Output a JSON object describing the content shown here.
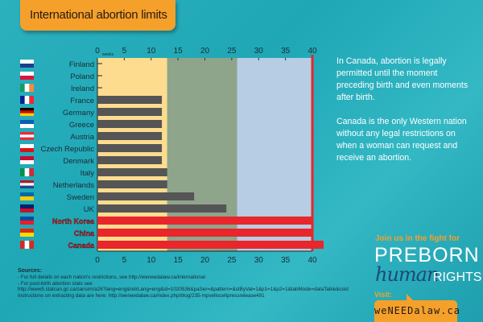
{
  "title": "International abortion limits",
  "chart_data": {
    "type": "bar",
    "orientation": "horizontal",
    "title": "International abortion limits",
    "xlabel": "weeks",
    "xlim": [
      0,
      40
    ],
    "xticks": [
      0,
      5,
      10,
      15,
      20,
      25,
      30,
      35,
      40
    ],
    "bands": [
      {
        "from": 0,
        "to": 13,
        "color": "#fddc8f"
      },
      {
        "from": 13,
        "to": 26,
        "color": "#8fa58b"
      },
      {
        "from": 26,
        "to": 40,
        "color": "#b7cde3"
      }
    ],
    "categories": [
      "Finland",
      "Poland",
      "Ireland",
      "France",
      "Germany",
      "Greece",
      "Austria",
      "Czech Republic",
      "Denmark",
      "Italy",
      "Netherlands",
      "Sweden",
      "UK",
      "North Korea",
      "China",
      "Canada"
    ],
    "values": [
      0,
      0,
      0,
      12,
      12,
      12,
      12,
      12,
      12,
      13,
      13,
      18,
      24,
      40,
      40,
      40
    ],
    "highlight": [
      "North Korea",
      "China",
      "Canada"
    ],
    "bar_color": "#555555",
    "highlight_color": "#e8262b"
  },
  "side_text": [
    "In Canada, abortion is legally permitted until the moment preceding birth and even moments after birth.",
    "Canada is the only Western nation without any legal restrictions on when a woman can request and receive an abortion."
  ],
  "sources": {
    "heading": "Sources:",
    "lines": [
      "- For full details on each nation's restrictions, see http://weneedalaw.ca/international",
      "- For post-birth abortion stats see",
      "http://www5.statcan.gc.ca/cansim/a26?lang=eng&retrLang=eng&id=1020536&paSer=&pattern=&stByVal=1&p1=1&p2=1&tabMode=dataTable&csid",
      "Instructions on extracting data are here: http://weneedalaw.ca/index.php/blog/235-mpvelloceltpressrelease491"
    ]
  },
  "promo": {
    "join": "Join us in the fight for",
    "preborn": "PREBORN",
    "human": "human",
    "rights": "RIGHTS",
    "visit": "Visit:",
    "url": "weNEEDalaw.ca"
  }
}
